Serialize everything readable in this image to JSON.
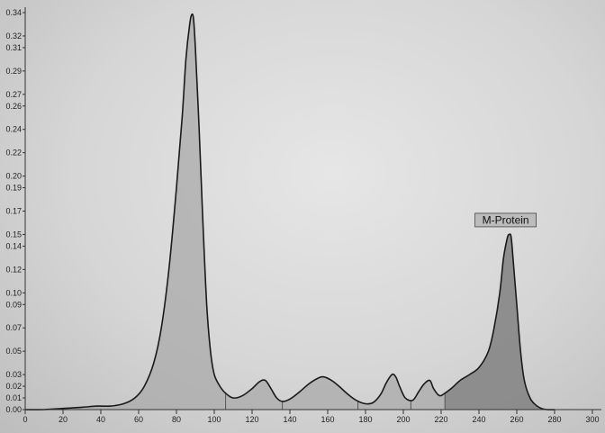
{
  "chart_data": {
    "type": "area",
    "title": "",
    "xlabel": "",
    "ylabel": "",
    "xlim": [
      0,
      300
    ],
    "ylim": [
      0,
      0.34
    ],
    "grid": false,
    "x_ticks": [
      0,
      20,
      40,
      60,
      80,
      100,
      120,
      140,
      160,
      180,
      200,
      220,
      240,
      260,
      280,
      300
    ],
    "x_tick_labels": [
      "0",
      "20",
      "40",
      "60",
      "80",
      "100",
      "120",
      "140",
      "160",
      "180",
      "200",
      "220",
      "240",
      "260",
      "280",
      "300"
    ],
    "y_ticks": [
      0.0,
      0.01,
      0.02,
      0.03,
      0.05,
      0.07,
      0.09,
      0.1,
      0.12,
      0.14,
      0.15,
      0.17,
      0.19,
      0.2,
      0.22,
      0.24,
      0.26,
      0.27,
      0.29,
      0.31,
      0.32,
      0.34
    ],
    "y_tick_labels": [
      "0.00",
      "0.01",
      "0.02",
      "0.03",
      "0.05",
      "0.07",
      "0.09",
      "0.10",
      "0.12",
      "0.14",
      "0.15",
      "0.17",
      "0.19",
      "0.20",
      "0.22",
      "0.24",
      "0.26",
      "0.27",
      "0.29",
      "0.31",
      "0.32",
      "0.34"
    ],
    "fraction_dividers_x": [
      106,
      136,
      176,
      204,
      222
    ],
    "series": [
      {
        "color": "#1a1a1a",
        "x": [
          0,
          10,
          20,
          30,
          38,
          45,
          52,
          58,
          63,
          68,
          72,
          76,
          80,
          83,
          85,
          87,
          88,
          89,
          90,
          92,
          94,
          96,
          98,
          100,
          103,
          106,
          110,
          115,
          120,
          124,
          127,
          130,
          133,
          136,
          140,
          145,
          150,
          155,
          158,
          162,
          166,
          170,
          175,
          180,
          184,
          188,
          191,
          194,
          196,
          198,
          201,
          205,
          208,
          211,
          214,
          216,
          219,
          222,
          226,
          230,
          235,
          240,
          245,
          248,
          251,
          253,
          255,
          256,
          257,
          258,
          260,
          262,
          264,
          267,
          270,
          273,
          276,
          280
        ],
        "y": [
          0.0,
          0.0,
          0.001,
          0.002,
          0.003,
          0.003,
          0.005,
          0.01,
          0.02,
          0.04,
          0.07,
          0.12,
          0.19,
          0.25,
          0.3,
          0.33,
          0.338,
          0.335,
          0.31,
          0.24,
          0.16,
          0.09,
          0.05,
          0.03,
          0.02,
          0.014,
          0.01,
          0.012,
          0.018,
          0.024,
          0.025,
          0.018,
          0.01,
          0.007,
          0.009,
          0.015,
          0.022,
          0.027,
          0.028,
          0.025,
          0.02,
          0.014,
          0.008,
          0.005,
          0.006,
          0.013,
          0.023,
          0.03,
          0.028,
          0.02,
          0.01,
          0.008,
          0.015,
          0.022,
          0.025,
          0.018,
          0.012,
          0.014,
          0.019,
          0.025,
          0.03,
          0.036,
          0.05,
          0.07,
          0.1,
          0.13,
          0.147,
          0.15,
          0.148,
          0.13,
          0.09,
          0.05,
          0.025,
          0.01,
          0.004,
          0.001,
          0.0,
          0.0
        ]
      }
    ],
    "annotations": [
      {
        "text": "M-Protein",
        "x": 256,
        "y": 0.15
      }
    ]
  }
}
